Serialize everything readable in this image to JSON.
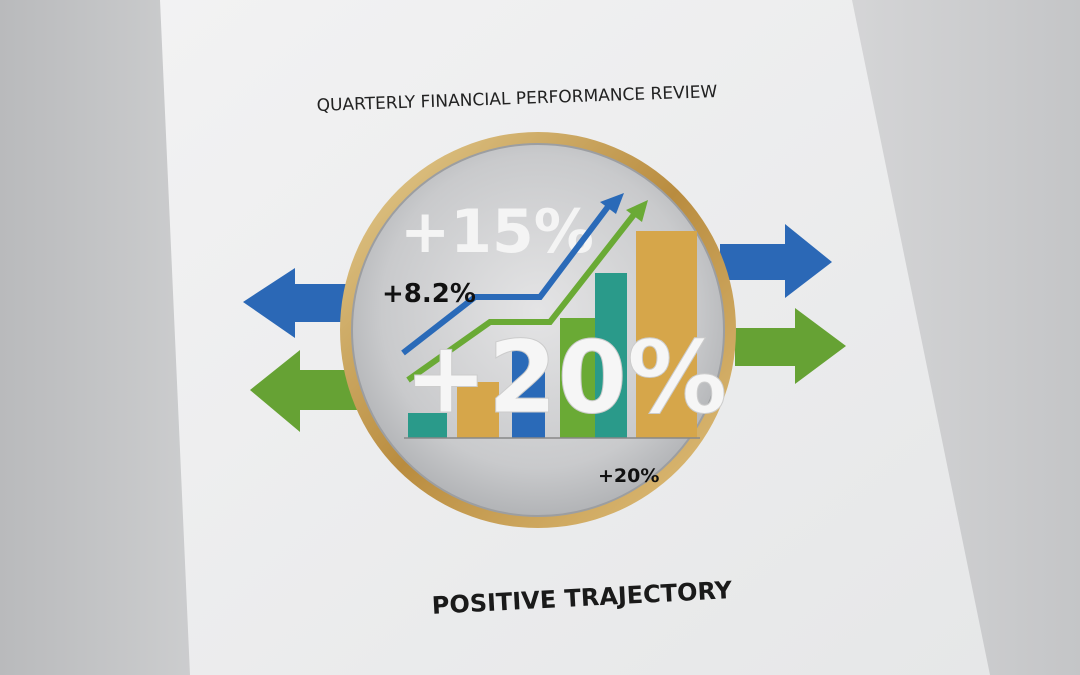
{
  "cover": {
    "title": "QUARTERLY FINANCIAL PERFORMANCE REVIEW",
    "subtitle": "POSITIVE TRAJECTORY"
  },
  "badge": {
    "stat_large_top": "+15%",
    "stat_small_left": "+8.2%",
    "stat_large_center": "+20%",
    "stat_small_bottom": "+20%"
  },
  "colors": {
    "blue": "#2a6ab8",
    "green": "#6aaa35",
    "teal": "#2a9a8a",
    "gold": "#d6a64a",
    "ring": "#c9a25a"
  },
  "icons": [
    "arrow-left-blue",
    "arrow-left-green",
    "arrow-right-blue",
    "arrow-right-green",
    "trend-arrow-blue",
    "trend-arrow-green"
  ]
}
